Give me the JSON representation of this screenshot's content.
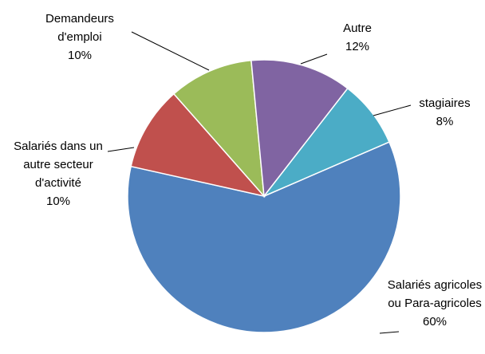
{
  "chart_data": {
    "type": "pie",
    "categories": [
      "Salariés agricoles ou Para-agricoles",
      "Salariés dans un autre secteur d'activité",
      "Demandeurs d'emploi",
      "Autre",
      "stagiaires"
    ],
    "values": [
      60,
      10,
      10,
      12,
      8
    ],
    "value_labels": [
      "60%",
      "10%",
      "10%",
      "12%",
      "8%"
    ],
    "colors": [
      "#4f81bd",
      "#c0504d",
      "#9bbb59",
      "#8064a2",
      "#4bacc6"
    ]
  }
}
